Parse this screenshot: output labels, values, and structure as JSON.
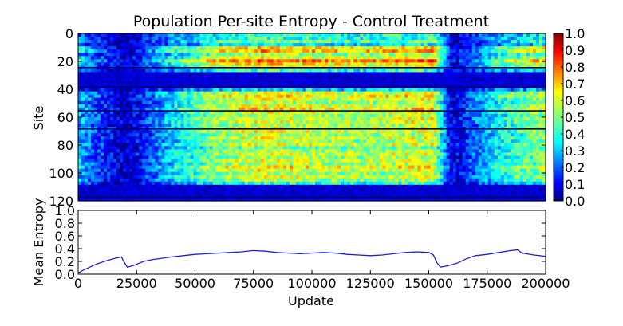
{
  "chart_data": [
    {
      "type": "heatmap",
      "title": "Population Per-site Entropy - Control Treatment",
      "ylabel": "Site",
      "xlim": [
        0,
        200000
      ],
      "ylim": [
        120,
        0
      ],
      "y_ticks": [
        "0",
        "20",
        "40",
        "60",
        "80",
        "100",
        "120"
      ],
      "y_tick_values": [
        0,
        20,
        40,
        60,
        80,
        100,
        120
      ],
      "colormap": "jet",
      "colorbar": {
        "range": [
          0.0,
          1.0
        ],
        "tick_labels": [
          "0.0",
          "0.1",
          "0.2",
          "0.3",
          "0.4",
          "0.5",
          "0.6",
          "0.7",
          "0.8",
          "0.9",
          "1.0"
        ],
        "tick_values": [
          0.0,
          0.1,
          0.2,
          0.3,
          0.4,
          0.5,
          0.6,
          0.7,
          0.8,
          0.9,
          1.0
        ]
      },
      "x_phase_updates": [
        0,
        3000,
        20000,
        40000,
        60000,
        80000,
        100000,
        120000,
        140000,
        152000,
        160000,
        180000,
        200000
      ],
      "phase_level": [
        0.32,
        0.28,
        0.05,
        0.35,
        0.55,
        0.62,
        0.58,
        0.55,
        0.6,
        0.62,
        0.08,
        0.4,
        0.55
      ],
      "row_level": [
        0.35,
        0.35,
        0.4,
        0.3,
        0.55,
        0.6,
        0.45,
        0.5,
        0.65,
        0.55,
        0.5,
        0.35,
        0.05,
        0.05,
        0.05,
        0.05,
        0.05,
        0.3,
        0.5,
        0.55,
        0.5,
        0.45,
        0.5,
        0.55,
        0.5,
        0.45,
        0.5,
        0.5,
        0.45,
        0.5,
        0.5,
        0.45,
        0.5,
        0.45,
        0.5,
        0.4,
        0.45,
        0.5,
        0.45,
        0.5,
        0.45,
        0.55,
        0.5,
        0.45,
        0.5,
        0.45,
        0.35,
        0.05,
        0.05,
        0.05,
        0.05,
        0.05
      ],
      "dark_rows": [
        24,
        38,
        55,
        68,
        117
      ]
    },
    {
      "type": "line",
      "xlabel": "Update",
      "ylabel": "Mean Entropy",
      "xlim": [
        0,
        200000
      ],
      "ylim": [
        0.0,
        1.0
      ],
      "x_ticks": [
        "0",
        "25000",
        "50000",
        "75000",
        "100000",
        "125000",
        "150000",
        "175000",
        "200000"
      ],
      "x_tick_values": [
        0,
        25000,
        50000,
        75000,
        100000,
        125000,
        150000,
        175000,
        200000
      ],
      "y_ticks": [
        "0.0",
        "0.2",
        "0.4",
        "0.6",
        "0.8",
        "1.0"
      ],
      "y_tick_values": [
        0.0,
        0.2,
        0.4,
        0.6,
        0.8,
        1.0
      ],
      "grid": false,
      "color": "#1f1fd0",
      "series": [
        {
          "x": [
            0,
            2000,
            5000,
            8000,
            12000,
            16000,
            18500,
            19500,
            21000,
            24000,
            28000,
            32000,
            36000,
            40000,
            45000,
            50000,
            55000,
            60000,
            65000,
            70000,
            75000,
            80000,
            85000,
            90000,
            95000,
            100000,
            105000,
            110000,
            115000,
            120000,
            125000,
            130000,
            135000,
            140000,
            145000,
            150000,
            152000,
            153500,
            155000,
            158000,
            162000,
            166000,
            170000,
            175000,
            180000,
            185000,
            188000,
            190000,
            195000,
            200000
          ],
          "y": [
            0.02,
            0.06,
            0.11,
            0.16,
            0.21,
            0.25,
            0.27,
            0.2,
            0.11,
            0.14,
            0.2,
            0.23,
            0.25,
            0.27,
            0.29,
            0.31,
            0.32,
            0.33,
            0.34,
            0.35,
            0.37,
            0.36,
            0.34,
            0.33,
            0.32,
            0.33,
            0.34,
            0.33,
            0.31,
            0.3,
            0.29,
            0.3,
            0.32,
            0.34,
            0.35,
            0.34,
            0.3,
            0.18,
            0.11,
            0.13,
            0.17,
            0.24,
            0.29,
            0.31,
            0.34,
            0.37,
            0.38,
            0.33,
            0.3,
            0.28
          ]
        }
      ]
    }
  ]
}
